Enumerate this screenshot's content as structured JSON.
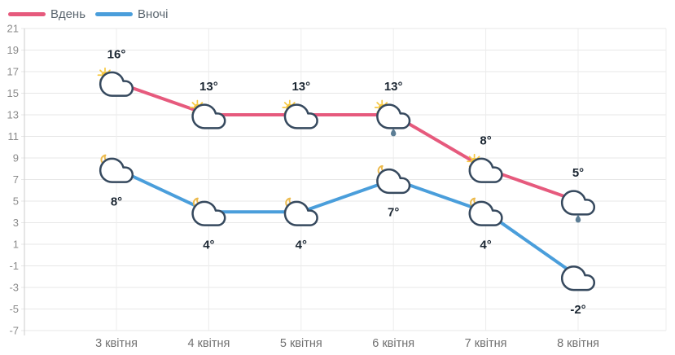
{
  "legend": {
    "day": {
      "label": "Вдень",
      "color": "#e65a7d"
    },
    "night": {
      "label": "Вночі",
      "color": "#4a9edb"
    }
  },
  "chart_data": {
    "type": "line",
    "title": "",
    "xlabel": "",
    "ylabel": "",
    "categories": [
      "3 квітня",
      "4 квітня",
      "5 квітня",
      "6 квітня",
      "7 квітня",
      "8 квітня"
    ],
    "ylim": [
      -7,
      21
    ],
    "yticks": [
      21,
      19,
      17,
      15,
      13,
      11,
      9,
      7,
      5,
      3,
      1,
      -1,
      -3,
      -5,
      -7
    ],
    "grid": true,
    "legend_position": "top-left",
    "series": [
      {
        "name": "Вдень",
        "color": "#e65a7d",
        "label_position": "above",
        "values": [
          16,
          13,
          13,
          13,
          8,
          5
        ],
        "labels": [
          "16°",
          "13°",
          "13°",
          "13°",
          "8°",
          "5°"
        ],
        "icons": [
          "sun-cloud",
          "sun-cloud",
          "sun-cloud",
          "sun-cloud-rain",
          "sun-cloud",
          "cloud-rain"
        ]
      },
      {
        "name": "Вночі",
        "color": "#4a9edb",
        "label_position": "below",
        "values": [
          8,
          4,
          4,
          7,
          4,
          -2
        ],
        "labels": [
          "8°",
          "4°",
          "4°",
          "7°",
          "4°",
          "-2°"
        ],
        "icons": [
          "moon-cloud",
          "moon-cloud",
          "moon-cloud",
          "moon-cloud",
          "moon-cloud",
          "cloud"
        ]
      }
    ],
    "colors": {
      "grid": "#e7e7e7",
      "grid_vertical": "#ececec",
      "axis": "#d4d4d4",
      "tick_text": "#8b8b8b",
      "x_text": "#707070",
      "label_text": "#1c2733",
      "cloud_stroke": "#36495e",
      "sun": "#f7c83f",
      "moon": "#ecba4d",
      "raindrop": "#5c7d95"
    }
  }
}
